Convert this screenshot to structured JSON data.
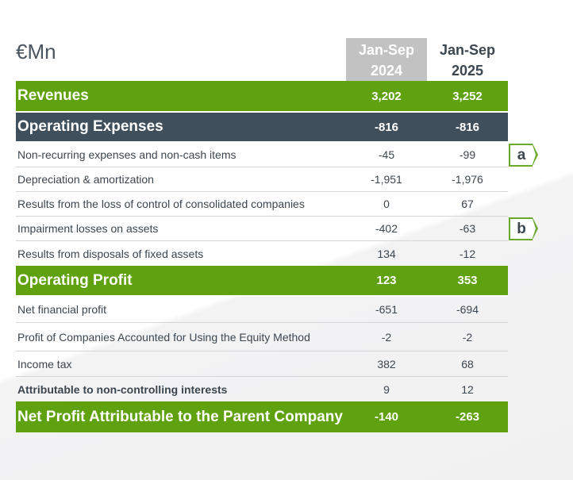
{
  "unit": "€Mn",
  "headers": [
    {
      "line1": "Jan-Sep",
      "line2": "2024"
    },
    {
      "line1": "Jan-Sep",
      "line2": "2025"
    }
  ],
  "rows": [
    {
      "label": "Revenues",
      "v1": "3,202",
      "v2": "3,252"
    },
    {
      "label": "Operating Expenses",
      "v1": "-816",
      "v2": "-816"
    },
    {
      "label": "Non-recurring expenses and non-cash items",
      "v1": "-45",
      "v2": "-99"
    },
    {
      "label": "Depreciation & amortization",
      "v1": "-1,951",
      "v2": "-1,976"
    },
    {
      "label": "Results from the loss of control of consolidated companies",
      "v1": "0",
      "v2": "67"
    },
    {
      "label": "Impairment losses on assets",
      "v1": "-402",
      "v2": "-63"
    },
    {
      "label": "Results from disposals of fixed assets",
      "v1": "134",
      "v2": "-12"
    },
    {
      "label": "Operating Profit",
      "v1": "123",
      "v2": "353"
    },
    {
      "label": "Net financial profit",
      "v1": "-651",
      "v2": "-694"
    },
    {
      "label": "Profit of Companies Accounted for Using the Equity Method",
      "v1": "-2",
      "v2": "-2"
    },
    {
      "label": "Income tax",
      "v1": "382",
      "v2": "68"
    },
    {
      "label": "Attributable to non-controlling interests",
      "v1": "9",
      "v2": "12"
    },
    {
      "label": "Net Profit Attributable to the Parent Company",
      "v1": "-140",
      "v2": "-263"
    }
  ],
  "badges": [
    "a",
    "b"
  ]
}
